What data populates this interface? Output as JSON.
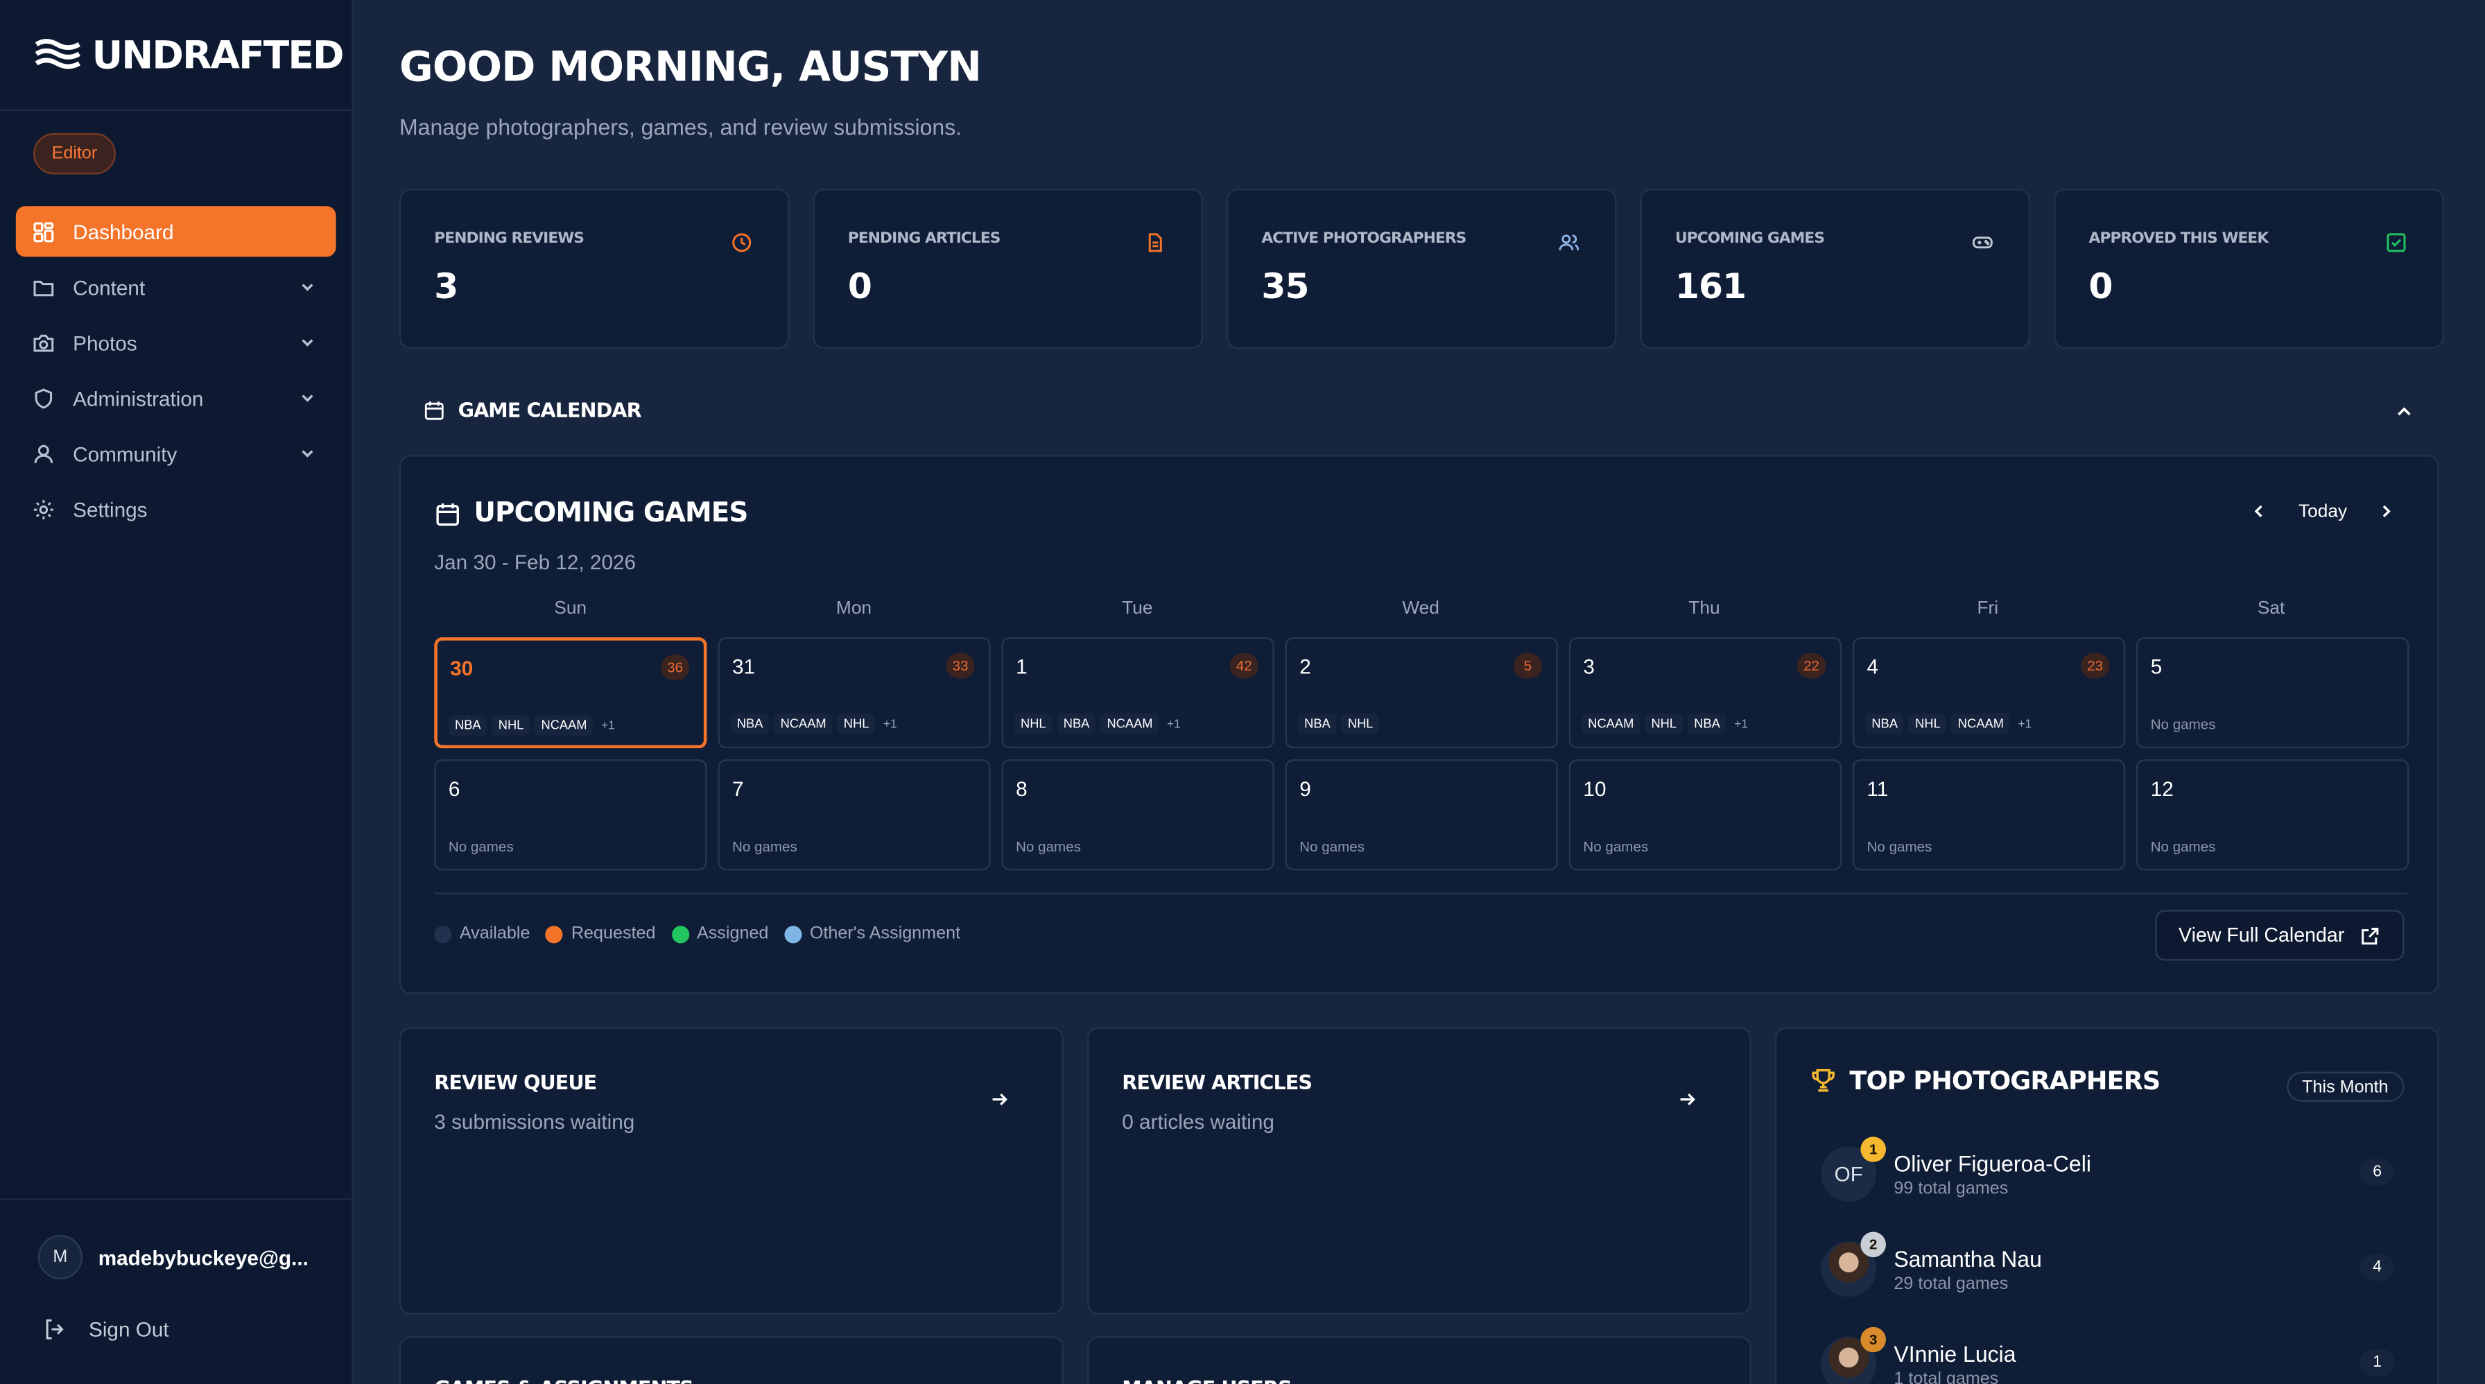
{
  "brand": {
    "name": "UNDRAFTED"
  },
  "role": "Editor",
  "nav": [
    {
      "label": "Dashboard",
      "icon": "dashboard-icon",
      "active": true,
      "expandable": false
    },
    {
      "label": "Content",
      "icon": "folder-icon",
      "expandable": true
    },
    {
      "label": "Photos",
      "icon": "camera-icon",
      "expandable": true
    },
    {
      "label": "Administration",
      "icon": "shield-icon",
      "expandable": true
    },
    {
      "label": "Community",
      "icon": "user-icon",
      "expandable": true
    },
    {
      "label": "Settings",
      "icon": "gear-icon",
      "expandable": false
    }
  ],
  "user": {
    "initial": "M",
    "email": "madebybuckeye@g..."
  },
  "signout_label": "Sign Out",
  "header": {
    "greeting": "GOOD MORNING, AUSTYN",
    "subtitle": "Manage photographers, games, and review submissions."
  },
  "stats": [
    {
      "label": "PENDING REVIEWS",
      "value": "3",
      "icon": "clock-icon",
      "color": "#f4742a"
    },
    {
      "label": "PENDING ARTICLES",
      "value": "0",
      "icon": "document-icon",
      "color": "#f4742a"
    },
    {
      "label": "ACTIVE PHOTOGRAPHERS",
      "value": "35",
      "icon": "users-icon",
      "color": "#8fb8e8"
    },
    {
      "label": "UPCOMING GAMES",
      "value": "161",
      "icon": "gamepad-icon",
      "color": "#c2cad6"
    },
    {
      "label": "APPROVED THIS WEEK",
      "value": "0",
      "icon": "check-square-icon",
      "color": "#22c55e"
    }
  ],
  "calendar_section": {
    "title": "GAME CALENDAR"
  },
  "calendar": {
    "title": "UPCOMING GAMES",
    "range": "Jan 30 - Feb 12, 2026",
    "today_label": "Today",
    "weekdays": [
      "Sun",
      "Mon",
      "Tue",
      "Wed",
      "Thu",
      "Fri",
      "Sat"
    ],
    "no_games_label": "No games",
    "days": [
      {
        "num": "30",
        "count": "36",
        "leagues": [
          "NBA",
          "NHL",
          "NCAAM"
        ],
        "more": "+1",
        "today": true
      },
      {
        "num": "31",
        "count": "33",
        "leagues": [
          "NBA",
          "NCAAM",
          "NHL"
        ],
        "more": "+1"
      },
      {
        "num": "1",
        "count": "42",
        "leagues": [
          "NHL",
          "NBA",
          "NCAAM"
        ],
        "more": "+1"
      },
      {
        "num": "2",
        "count": "5",
        "leagues": [
          "NBA",
          "NHL"
        ],
        "more": ""
      },
      {
        "num": "3",
        "count": "22",
        "leagues": [
          "NCAAM",
          "NHL",
          "NBA"
        ],
        "more": "+1"
      },
      {
        "num": "4",
        "count": "23",
        "leagues": [
          "NBA",
          "NHL",
          "NCAAM"
        ],
        "more": "+1"
      },
      {
        "num": "5",
        "count": "",
        "leagues": [],
        "more": ""
      },
      {
        "num": "6",
        "count": "",
        "leagues": [],
        "more": ""
      },
      {
        "num": "7",
        "count": "",
        "leagues": [],
        "more": ""
      },
      {
        "num": "8",
        "count": "",
        "leagues": [],
        "more": ""
      },
      {
        "num": "9",
        "count": "",
        "leagues": [],
        "more": ""
      },
      {
        "num": "10",
        "count": "",
        "leagues": [],
        "more": ""
      },
      {
        "num": "11",
        "count": "",
        "leagues": [],
        "more": ""
      },
      {
        "num": "12",
        "count": "",
        "leagues": [],
        "more": ""
      }
    ],
    "legend": [
      {
        "label": "Available",
        "color": "#22324e"
      },
      {
        "label": "Requested",
        "color": "#f4742a"
      },
      {
        "label": "Assigned",
        "color": "#22c55e"
      },
      {
        "label": "Other's Assignment",
        "color": "#7fb6e6"
      }
    ],
    "view_full_label": "View Full Calendar"
  },
  "review_queue": {
    "title": "REVIEW QUEUE",
    "subtitle": "3 submissions waiting"
  },
  "review_articles": {
    "title": "REVIEW ARTICLES",
    "subtitle": "0 articles waiting"
  },
  "lower_panels": [
    {
      "title": "GAMES & ASSIGNMENTS"
    },
    {
      "title": "MANAGE USERS"
    }
  ],
  "top_photographers": {
    "title": "TOP PHOTOGRAPHERS",
    "period": "This Month",
    "items": [
      {
        "rank": "1",
        "initials": "OF",
        "name": "Oliver Figueroa-Celi",
        "sub": "99 total games",
        "count": "6",
        "rank_color": "#f5b82e"
      },
      {
        "rank": "2",
        "initials": "",
        "name": "Samantha Nau",
        "sub": "29 total games",
        "count": "4",
        "rank_color": "#c9ced6"
      },
      {
        "rank": "3",
        "initials": "",
        "name": "VInnie Lucia",
        "sub": "1 total games",
        "count": "1",
        "rank_color": "#d98a2b"
      }
    ]
  }
}
